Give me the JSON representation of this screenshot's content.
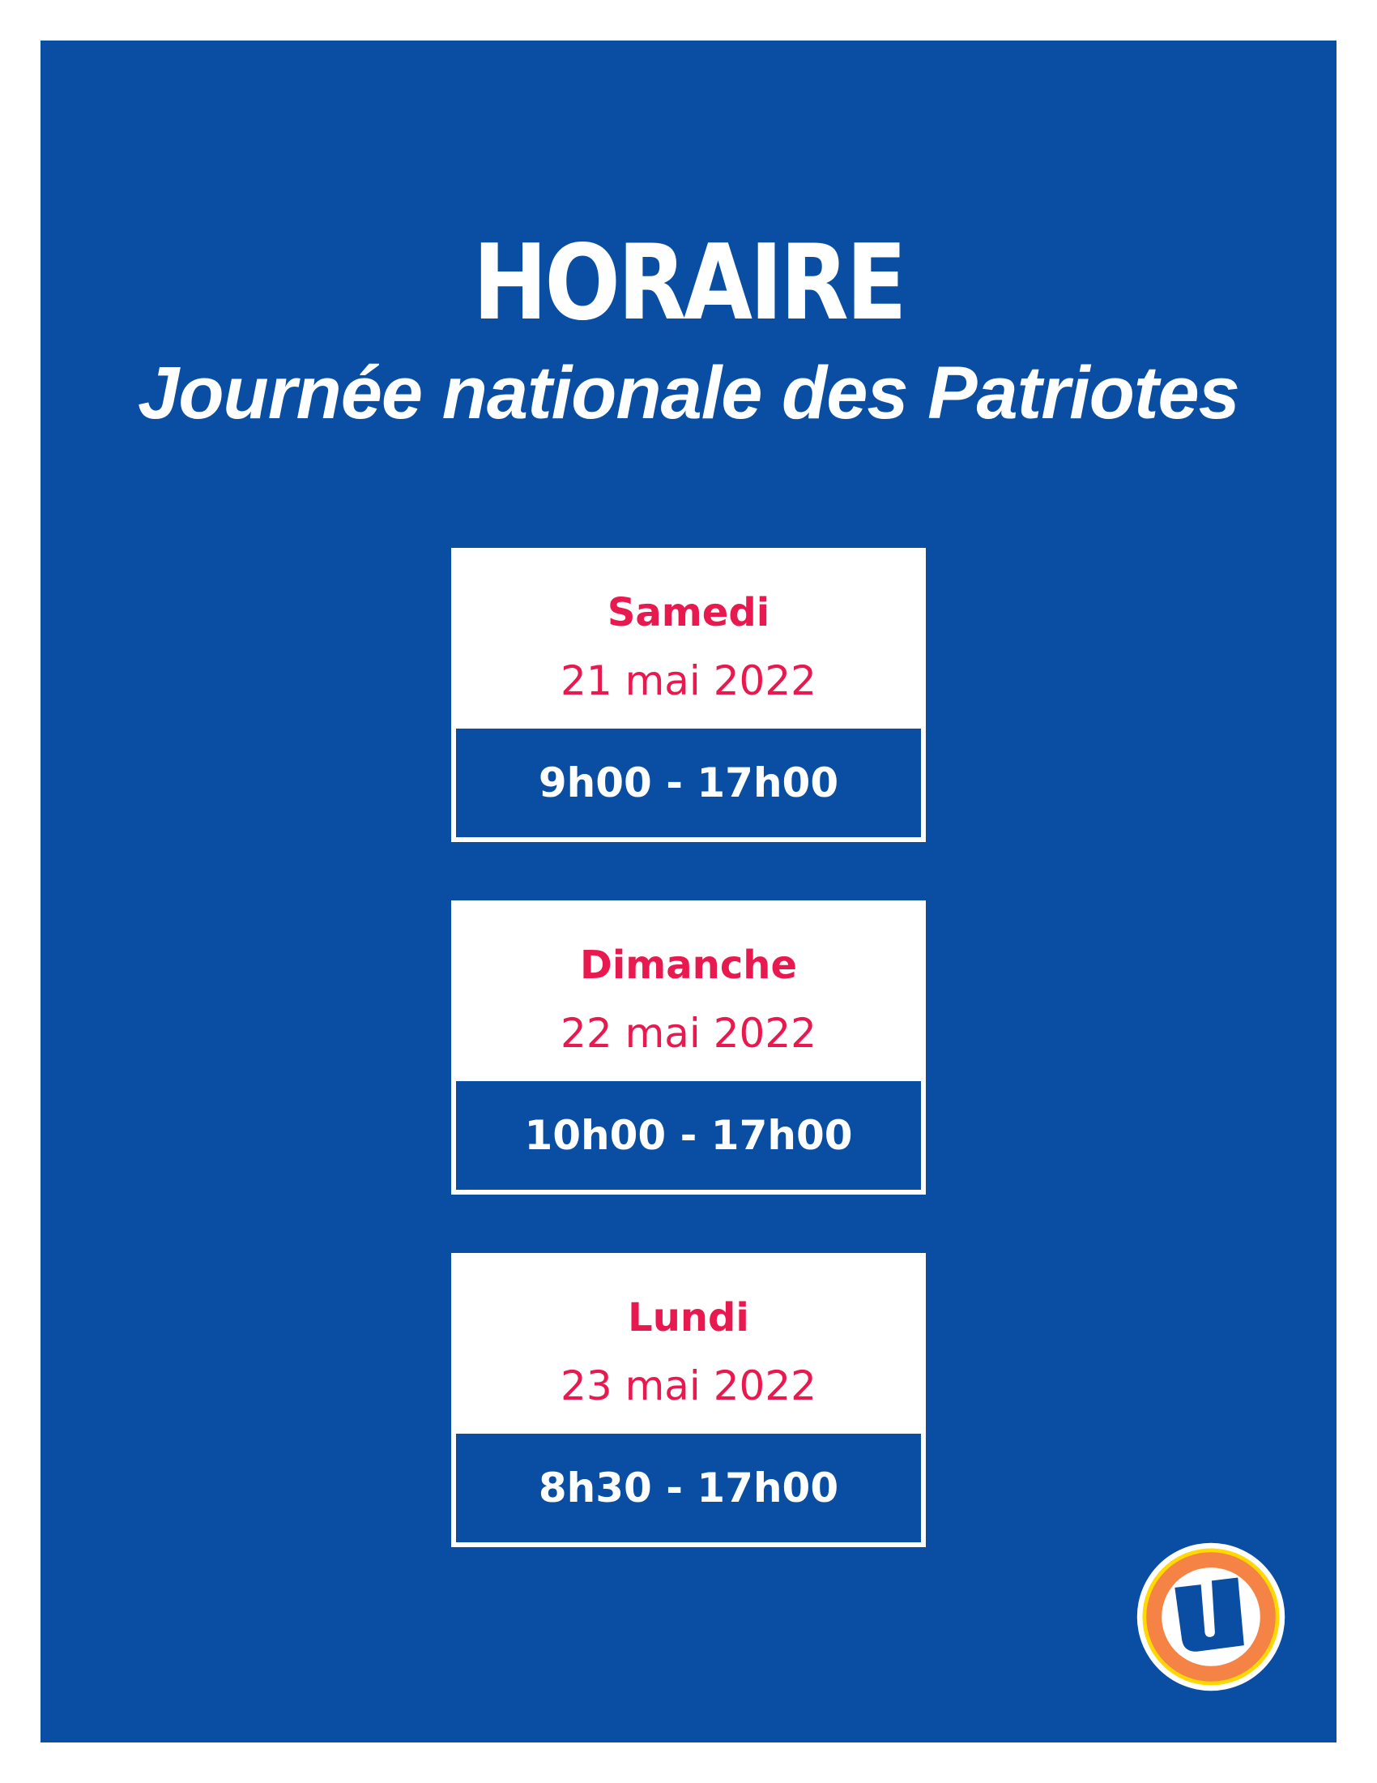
{
  "header": {
    "title": "HORAIRE",
    "subtitle": "Journée nationale des Patriotes"
  },
  "schedule": [
    {
      "day": "Samedi",
      "date": "21 mai 2022",
      "hours": "9h00 - 17h00"
    },
    {
      "day": "Dimanche",
      "date": "22 mai 2022",
      "hours": "10h00 - 17h00"
    },
    {
      "day": "Lundi",
      "date": "23 mai 2022",
      "hours": "8h30 - 17h00"
    }
  ],
  "logo": {
    "icon": "uniprix-u-logo",
    "text": "U"
  },
  "colors": {
    "background": "#094ea2",
    "accent": "#e8194f",
    "logo_orange": "#f58345",
    "logo_yellow": "#ffd900"
  }
}
